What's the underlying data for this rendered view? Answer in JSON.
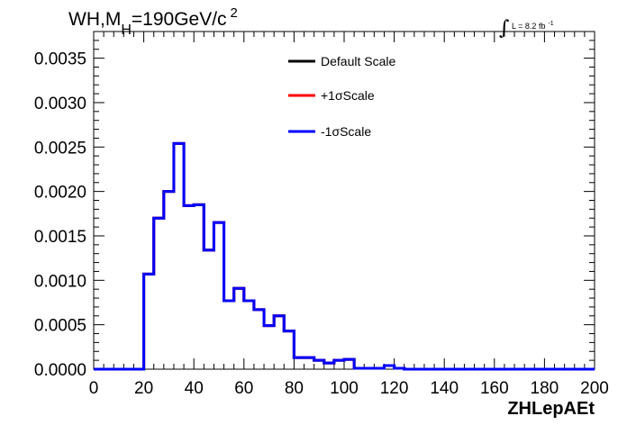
{
  "chart_data": {
    "type": "line",
    "title": {
      "main": "WH,M",
      "sub": "H",
      "value": "=190GeV/c",
      "sup": "2"
    },
    "luminosity": {
      "label": "L = 8.2 fb",
      "sup": "-1"
    },
    "xlabel": "ZHLepAEt",
    "ylabel": "",
    "xlim": [
      0,
      200
    ],
    "ylim": [
      0,
      0.0038
    ],
    "x_ticks": [
      "0",
      "20",
      "40",
      "60",
      "80",
      "100",
      "120",
      "140",
      "160",
      "180",
      "200"
    ],
    "y_ticks": [
      "0.0000",
      "0.0005",
      "0.0010",
      "0.0015",
      "0.0020",
      "0.0025",
      "0.0030",
      "0.0035"
    ],
    "grid": false,
    "legend_position": "top-center",
    "bin_width": 4,
    "bin_edges_start": 0,
    "series": [
      {
        "name": "Default Scale",
        "color": "#000000",
        "values": [
          0,
          0,
          0,
          0,
          0,
          0.00107,
          0.0017,
          0.002,
          0.00254,
          0.00184,
          0.00185,
          0.00134,
          0.00165,
          0.00077,
          0.00091,
          0.00077,
          0.00067,
          0.00049,
          0.0006,
          0.00043,
          0.00013,
          0.00013,
          0.0001,
          7e-05,
          0.0001,
          0.00011,
          1e-05,
          1e-05,
          1e-05,
          4e-05,
          1e-05,
          0,
          0,
          0,
          0,
          0,
          0,
          0,
          0,
          0,
          0,
          0,
          0,
          0,
          0,
          0,
          0,
          0,
          0,
          0
        ]
      },
      {
        "name": "+1σScale",
        "color": "#ff0000",
        "values": [
          0,
          0,
          0,
          0,
          0,
          0.00107,
          0.0017,
          0.002,
          0.00254,
          0.00184,
          0.00185,
          0.00134,
          0.00165,
          0.00077,
          0.00091,
          0.00077,
          0.00067,
          0.00049,
          0.0006,
          0.00043,
          0.00013,
          0.00013,
          0.0001,
          7e-05,
          0.0001,
          0.00011,
          1e-05,
          1e-05,
          1e-05,
          4e-05,
          1e-05,
          0,
          0,
          0,
          0,
          0,
          0,
          0,
          0,
          0,
          0,
          0,
          0,
          0,
          0,
          0,
          0,
          0,
          0,
          0
        ]
      },
      {
        "name": "-1σScale",
        "color": "#0000ff",
        "values": [
          0,
          0,
          0,
          0,
          0,
          0.00107,
          0.0017,
          0.002,
          0.00254,
          0.00184,
          0.00185,
          0.00134,
          0.00165,
          0.00077,
          0.00091,
          0.00077,
          0.00067,
          0.00049,
          0.0006,
          0.00043,
          0.00013,
          0.00013,
          0.0001,
          7e-05,
          0.0001,
          0.00011,
          1e-05,
          1e-05,
          1e-05,
          4e-05,
          1e-05,
          0,
          0,
          0,
          0,
          0,
          0,
          0,
          0,
          0,
          0,
          0,
          0,
          0,
          0,
          0,
          0,
          0,
          0,
          0
        ]
      }
    ]
  }
}
